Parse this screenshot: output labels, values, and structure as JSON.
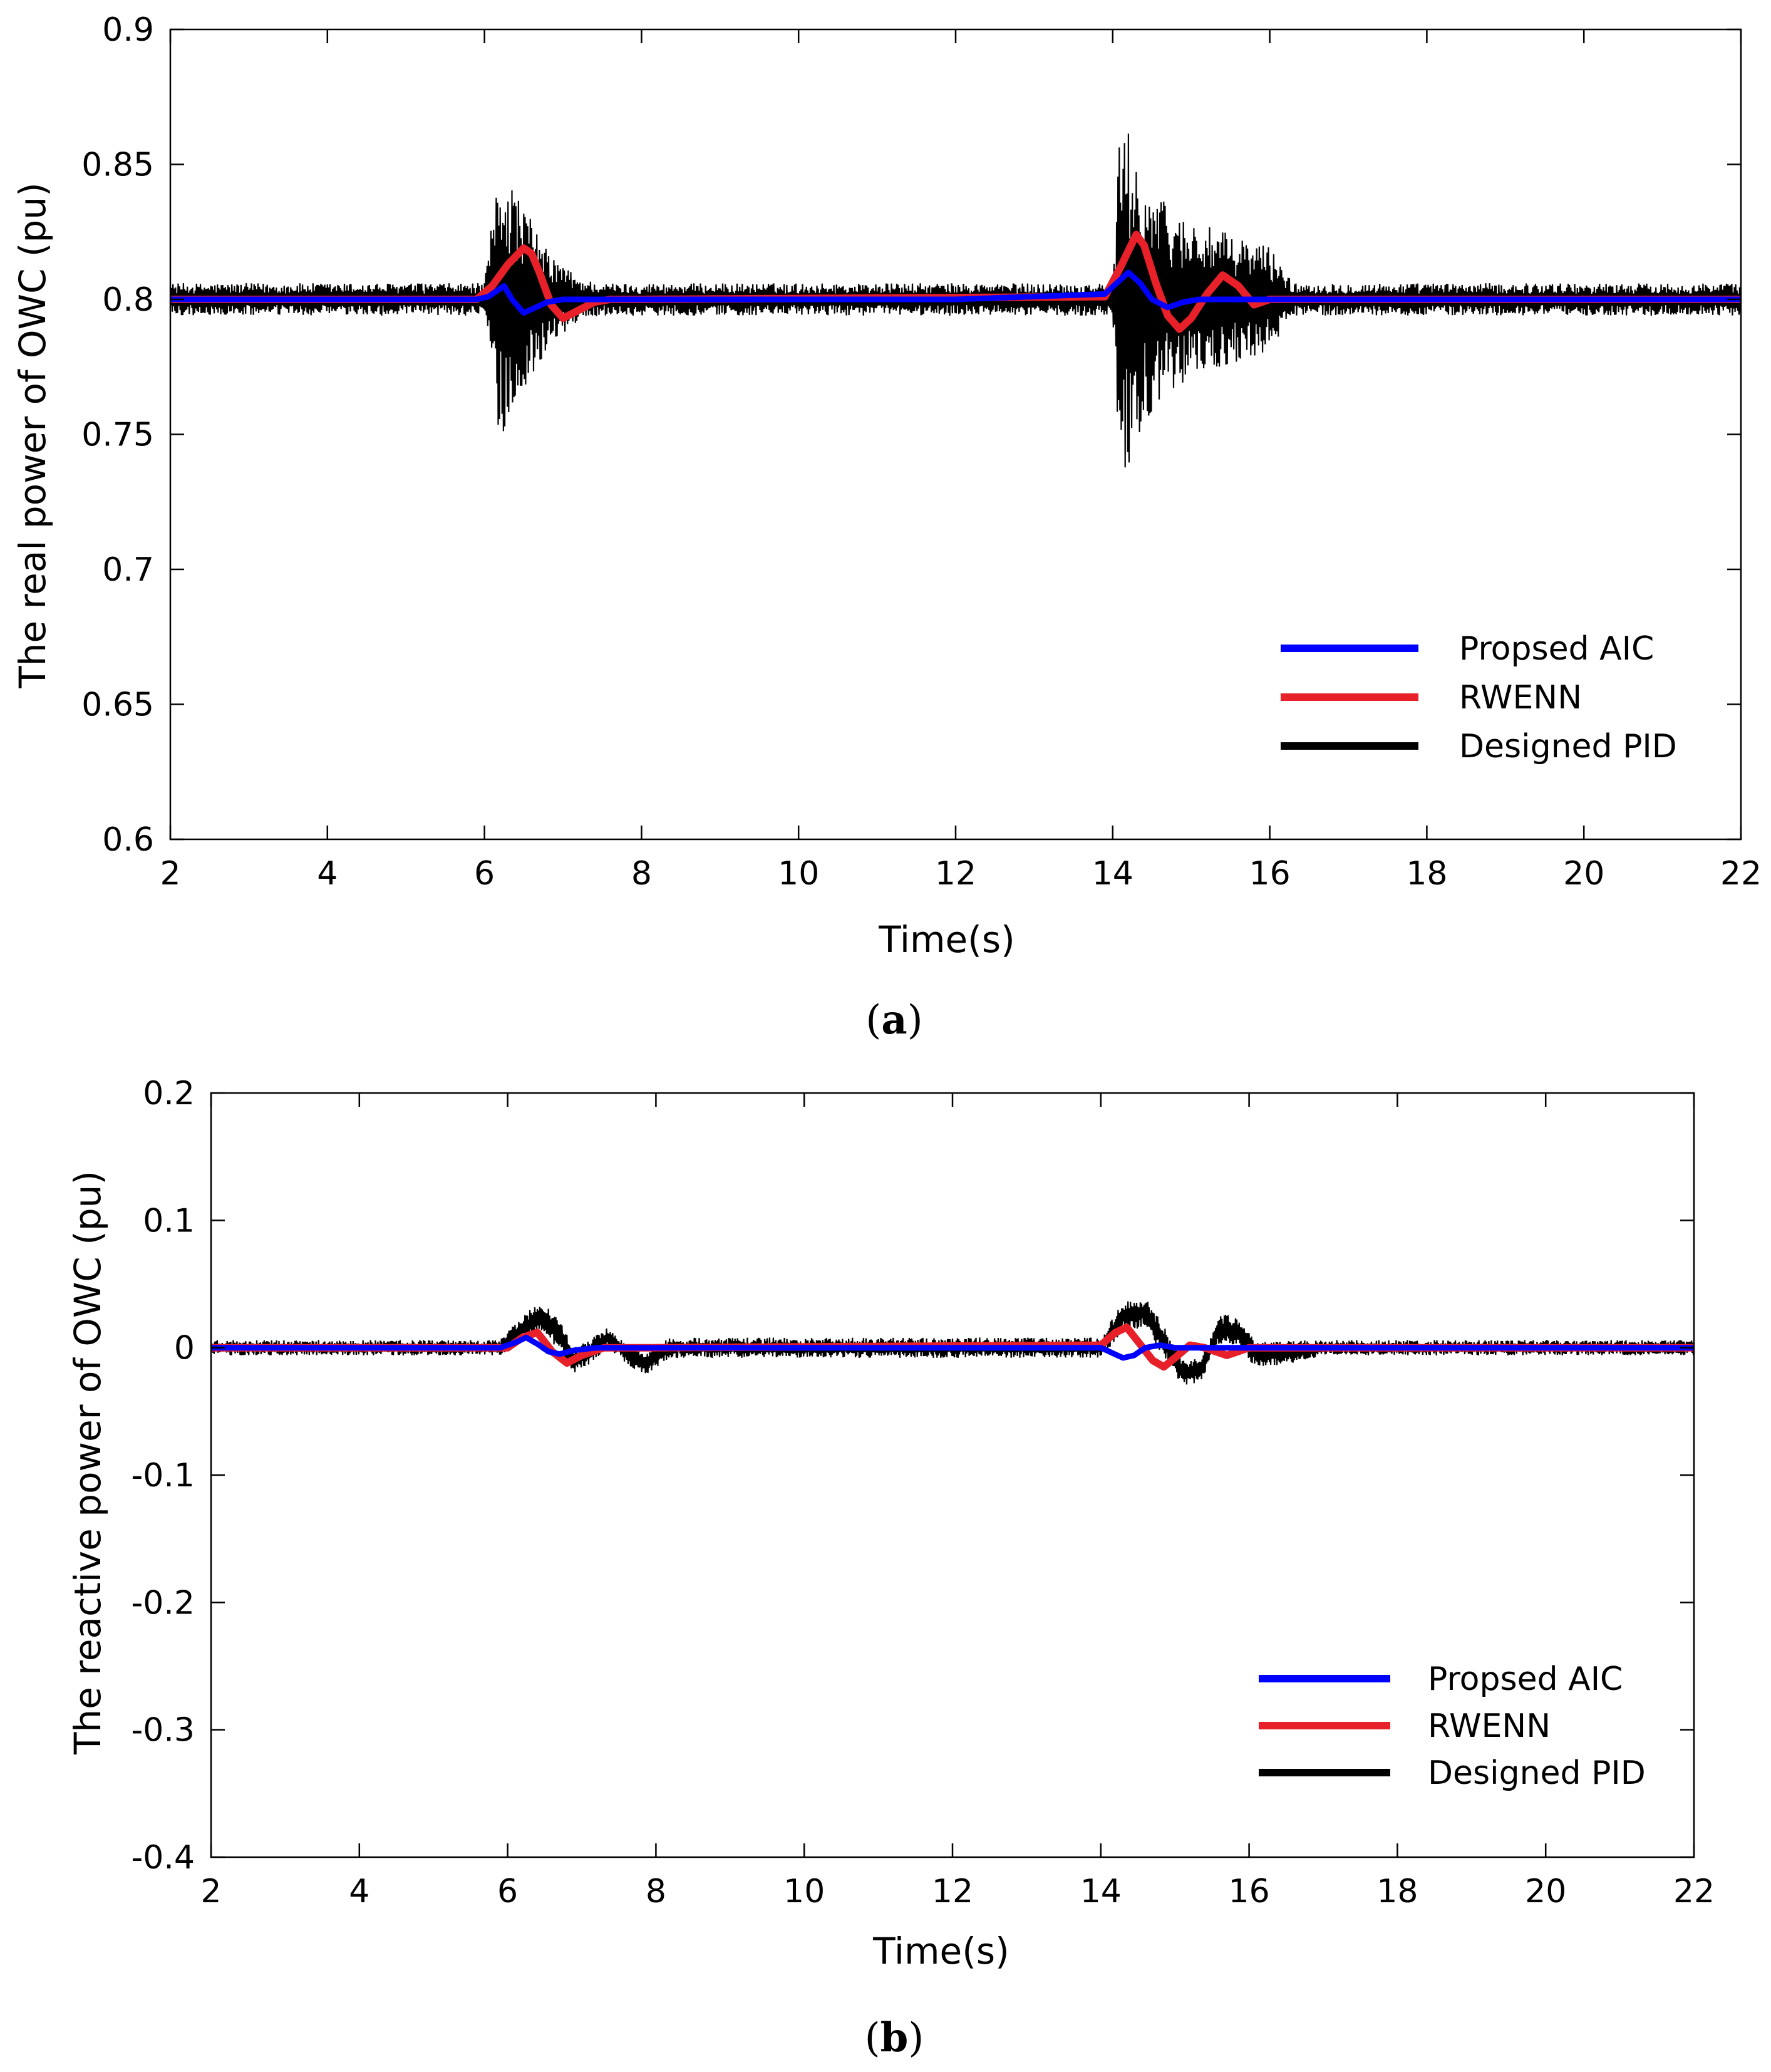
{
  "chart_data": [
    {
      "type": "line",
      "panel_label": "a",
      "xlabel": "Time(s)",
      "ylabel": "The real power of OWC (pu)",
      "xlim": [
        2,
        22
      ],
      "ylim": [
        0.6,
        0.9
      ],
      "xticks": [
        2,
        4,
        6,
        8,
        10,
        12,
        14,
        16,
        18,
        20,
        22
      ],
      "xtick_labels": [
        "2",
        "4",
        "6",
        "8",
        "10",
        "12",
        "14",
        "16",
        "18",
        "20",
        "22"
      ],
      "yticks": [
        0.6,
        0.65,
        0.7,
        0.75,
        0.8,
        0.85,
        0.9
      ],
      "ytick_labels": [
        "0.6",
        "0.65",
        "0.7",
        "0.75",
        "0.8",
        "0.85",
        "0.9"
      ],
      "legend_position": "bottom-right",
      "series": [
        {
          "name": "Propsed AIC",
          "color": "#0000ff",
          "x": [
            2,
            5.9,
            6.05,
            6.15,
            6.25,
            6.35,
            6.5,
            6.65,
            6.8,
            7.0,
            7.3,
            8,
            12,
            13.9,
            14.05,
            14.2,
            14.35,
            14.5,
            14.7,
            14.9,
            15.1,
            15.4,
            15.8,
            16.5,
            22
          ],
          "values": [
            0.8,
            0.8,
            0.801,
            0.803,
            0.805,
            0.8,
            0.795,
            0.797,
            0.799,
            0.8,
            0.8,
            0.8,
            0.8,
            0.802,
            0.806,
            0.81,
            0.806,
            0.8,
            0.797,
            0.799,
            0.8,
            0.8,
            0.8,
            0.8,
            0.8
          ]
        },
        {
          "name": "RWENN",
          "color": "#e8202a",
          "x": [
            2,
            5.9,
            6.1,
            6.3,
            6.5,
            6.6,
            6.7,
            6.85,
            7.0,
            7.2,
            7.4,
            7.6,
            8.0,
            13.9,
            14.1,
            14.3,
            14.4,
            14.55,
            14.7,
            14.85,
            15.0,
            15.2,
            15.4,
            15.6,
            15.8,
            16.0,
            16.3,
            22
          ],
          "values": [
            0.8,
            0.8,
            0.805,
            0.813,
            0.819,
            0.817,
            0.81,
            0.798,
            0.793,
            0.796,
            0.799,
            0.8,
            0.8,
            0.801,
            0.812,
            0.824,
            0.82,
            0.806,
            0.794,
            0.789,
            0.793,
            0.802,
            0.809,
            0.805,
            0.798,
            0.8,
            0.8,
            0.8
          ]
        },
        {
          "name": "Designed PID",
          "color": "#000000",
          "x": [
            2,
            6,
            6.2,
            6.5,
            6.8,
            7.2,
            7.5,
            8,
            14,
            14.1,
            14.4,
            14.8,
            15.4,
            16.0,
            16.3,
            22
          ],
          "values": [
            0.8,
            0.8,
            0.8,
            0.8,
            0.8,
            0.8,
            0.8,
            0.8,
            0.8,
            0.8,
            0.8,
            0.8,
            0.8,
            0.8,
            0.8,
            0.8
          ],
          "spread": [
            0.006,
            0.006,
            0.053,
            0.035,
            0.018,
            0.008,
            0.006,
            0.006,
            0.006,
            0.07,
            0.045,
            0.032,
            0.025,
            0.02,
            0.006,
            0.006
          ]
        }
      ]
    },
    {
      "type": "line",
      "panel_label": "b",
      "xlabel": "Time(s)",
      "ylabel": "The reactive power of OWC (pu)",
      "xlim": [
        2,
        22
      ],
      "ylim": [
        -0.4,
        0.2
      ],
      "xticks": [
        2,
        4,
        6,
        8,
        10,
        12,
        14,
        16,
        18,
        20,
        22
      ],
      "xtick_labels": [
        "2",
        "4",
        "6",
        "8",
        "10",
        "12",
        "14",
        "16",
        "18",
        "20",
        "22"
      ],
      "yticks": [
        -0.4,
        -0.3,
        -0.2,
        -0.1,
        0,
        0.1,
        0.2
      ],
      "ytick_labels": [
        "-0.4",
        "-0.3",
        "-0.2",
        "-0.1",
        "0",
        "0.1",
        "0.2"
      ],
      "legend_position": "bottom-right",
      "series": [
        {
          "name": "Propsed AIC",
          "color": "#0000ff",
          "x": [
            2,
            5.9,
            6.1,
            6.25,
            6.4,
            6.55,
            6.7,
            6.9,
            7.2,
            8,
            14.0,
            14.15,
            14.3,
            14.45,
            14.6,
            14.8,
            15.0,
            22
          ],
          "values": [
            0,
            0,
            0.004,
            0.008,
            0.003,
            -0.003,
            -0.005,
            -0.002,
            0,
            0,
            0,
            -0.004,
            -0.008,
            -0.006,
            0,
            0.002,
            0,
            0
          ]
        },
        {
          "name": "RWENN",
          "color": "#e8202a",
          "x": [
            2,
            6.0,
            6.2,
            6.4,
            6.6,
            6.8,
            7.0,
            7.3,
            8,
            14.0,
            14.2,
            14.35,
            14.5,
            14.7,
            14.85,
            15.0,
            15.2,
            15.4,
            15.7,
            16.0,
            22
          ],
          "values": [
            0,
            0,
            0.008,
            0.012,
            -0.003,
            -0.012,
            -0.006,
            0,
            0,
            0.002,
            0.012,
            0.016,
            0.005,
            -0.01,
            -0.015,
            -0.008,
            0.002,
            0,
            -0.006,
            0,
            0
          ]
        },
        {
          "name": "Designed PID",
          "color": "#000000",
          "x": [
            2,
            5.9,
            6.2,
            6.45,
            6.7,
            6.9,
            7.1,
            7.35,
            7.6,
            7.85,
            8.2,
            14.0,
            14.3,
            14.6,
            14.85,
            15.1,
            15.35,
            15.6,
            15.85,
            16.1,
            16.5,
            17.0,
            22
          ],
          "values": [
            0,
            0,
            0.015,
            0.025,
            0.01,
            -0.01,
            -0.004,
            0.008,
            -0.005,
            -0.012,
            0,
            0,
            0.025,
            0.028,
            0.005,
            -0.02,
            -0.018,
            0.015,
            0.012,
            -0.006,
            -0.004,
            0,
            0
          ],
          "spread": [
            0.006,
            0.006,
            0.01,
            0.012,
            0.012,
            0.01,
            0.01,
            0.008,
            0.008,
            0.01,
            0.008,
            0.008,
            0.012,
            0.012,
            0.012,
            0.01,
            0.01,
            0.012,
            0.012,
            0.01,
            0.01,
            0.006,
            0.006
          ]
        }
      ]
    }
  ]
}
